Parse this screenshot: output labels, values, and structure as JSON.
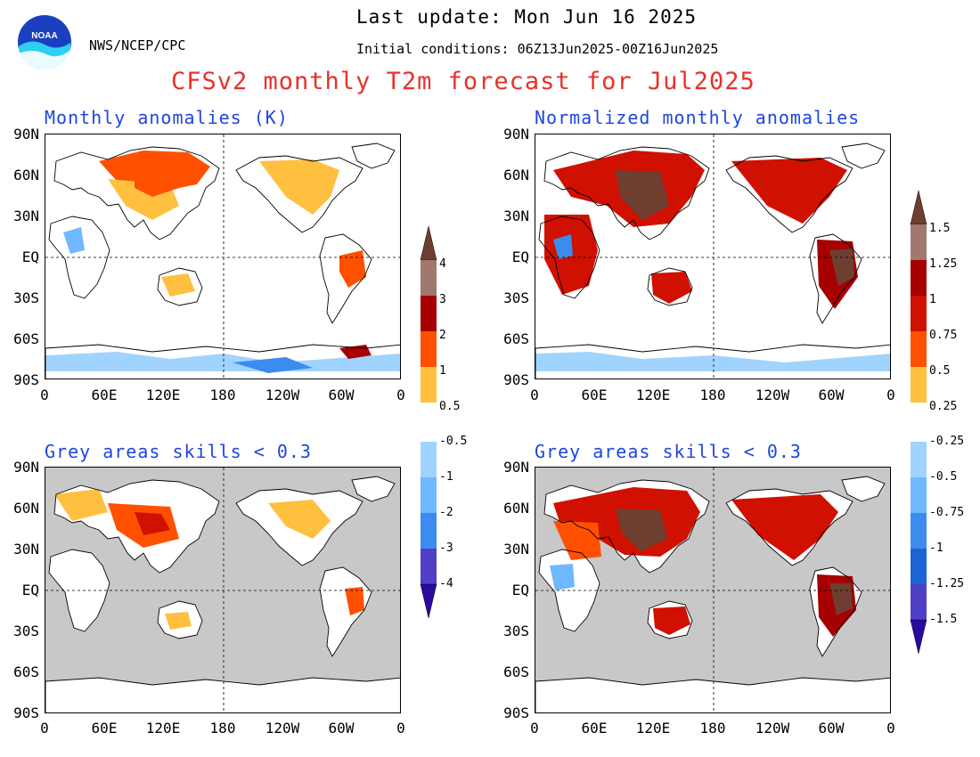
{
  "header": {
    "last_update": "Last update: Mon Jun 16 2025",
    "initial_conditions": "Initial conditions: 06Z13Jun2025-00Z16Jun2025",
    "agency": "NWS/NCEP/CPC",
    "logo_text": "NOAA",
    "title": "CFSv2 monthly T2m forecast for Jul2025"
  },
  "panels": {
    "top_left": {
      "title": "Monthly anomalies (K)"
    },
    "top_right": {
      "title": "Normalized monthly anomalies"
    },
    "bottom_left": {
      "title": "Grey areas skills < 0.3"
    },
    "bottom_right": {
      "title": "Grey areas skills < 0.3"
    }
  },
  "axes": {
    "lat_labels": [
      "90N",
      "60N",
      "30N",
      "EQ",
      "30S",
      "60S",
      "90S"
    ],
    "lon_labels": [
      "0",
      "60E",
      "120E",
      "180",
      "120W",
      "60W",
      "0"
    ]
  },
  "colorbar_left": {
    "warm_labels": [
      "4",
      "3",
      "2",
      "1",
      "0.5"
    ],
    "cool_labels": [
      "-0.5",
      "-1",
      "-2",
      "-3",
      "-4"
    ]
  },
  "colorbar_right": {
    "warm_labels": [
      "1.5",
      "1.25",
      "1",
      "0.75",
      "0.5",
      "0.25"
    ],
    "cool_labels": [
      "-0.25",
      "-0.5",
      "-0.75",
      "-1",
      "-1.25",
      "-1.5"
    ]
  },
  "colors": {
    "warm": [
      "#ffc040",
      "#ff5000",
      "#d01000",
      "#a60000",
      "#a07870",
      "#6e3e30"
    ],
    "cool": [
      "#a0d4ff",
      "#70b8ff",
      "#3c8cf0",
      "#1c64d4",
      "#5040c8",
      "#2a0aa0"
    ],
    "grey_mask": "#c8c8c8",
    "title_red": "#e8312a",
    "panel_title_blue": "#1e46e0"
  }
}
